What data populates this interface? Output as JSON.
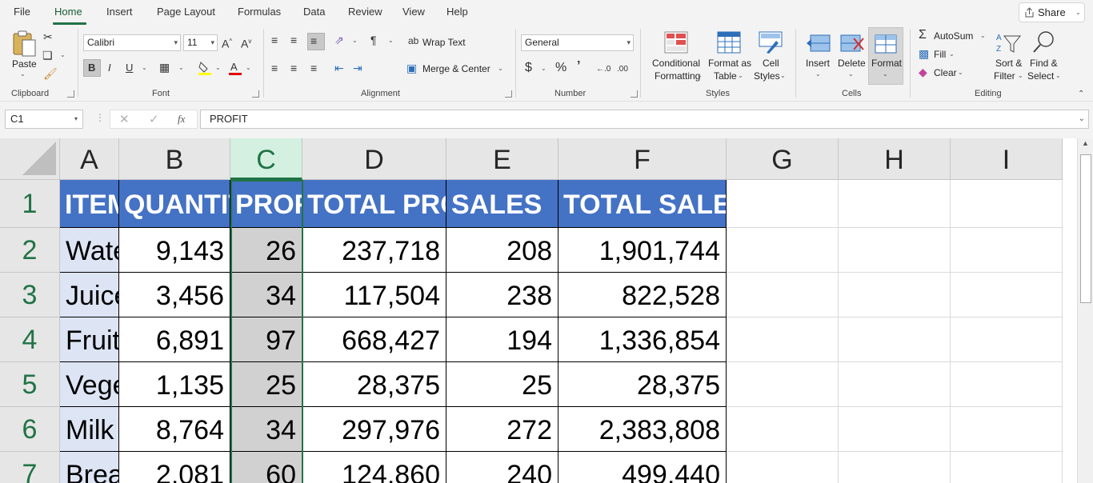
{
  "menu": [
    "File",
    "Home",
    "Insert",
    "Page Layout",
    "Formulas",
    "Data",
    "Review",
    "View",
    "Help"
  ],
  "share": "Share",
  "ribbon": {
    "clipboard": {
      "paste": "Paste",
      "label": "Clipboard"
    },
    "font": {
      "name": "Calibri",
      "size": "11",
      "bold": "B",
      "italic": "I",
      "underline": "U",
      "label": "Font"
    },
    "alignment": {
      "wrap": "Wrap Text",
      "merge": "Merge & Center",
      "label": "Alignment"
    },
    "number": {
      "format": "General",
      "label": "Number"
    },
    "styles": {
      "conditional": "Conditional",
      "formatting": "Formatting",
      "format_as": "Format as",
      "table": "Table",
      "cell": "Cell",
      "cell_styles": "Styles",
      "label": "Styles"
    },
    "cells": {
      "insert": "Insert",
      "delete": "Delete",
      "format": "Format",
      "label": "Cells"
    },
    "editing": {
      "autosum": "AutoSum",
      "fill": "Fill",
      "clear": "Clear",
      "sort": "Sort &",
      "filter": "Filter",
      "find": "Find &",
      "select": "Select",
      "label": "Editing"
    }
  },
  "formula_bar": {
    "cell_ref": "C1",
    "fx": "fx",
    "content": "PROFIT"
  },
  "columns": [
    "A",
    "B",
    "C",
    "D",
    "E",
    "F",
    "G",
    "H",
    "I"
  ],
  "rows": [
    "1",
    "2",
    "3",
    "4",
    "5",
    "6",
    "7"
  ],
  "table": {
    "headers": [
      "ITEMS",
      "QUANTITY",
      "PROFIT",
      "TOTAL PROFIT",
      "SALES",
      "TOTAL SALES"
    ],
    "data": [
      [
        "Water",
        "9,143",
        "26",
        "237,718",
        "208",
        "1,901,744"
      ],
      [
        "Juice",
        "3,456",
        "34",
        "117,504",
        "238",
        "822,528"
      ],
      [
        "Fruits",
        "6,891",
        "97",
        "668,427",
        "194",
        "1,336,854"
      ],
      [
        "Vegetables",
        "1,135",
        "25",
        "28,375",
        "25",
        "28,375"
      ],
      [
        "Milk",
        "8,764",
        "34",
        "297,976",
        "272",
        "2,383,808"
      ],
      [
        "Bread",
        "2,081",
        "60",
        "124,860",
        "240",
        "499,440"
      ]
    ]
  },
  "colors": {
    "accent": "#217346",
    "header_fill": "#4472c4",
    "selection": "#d1d1d1"
  }
}
